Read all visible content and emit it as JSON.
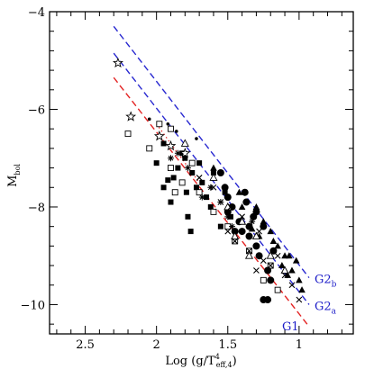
{
  "chart_data": {
    "type": "scatter",
    "title": "",
    "xlabel": "Log (g/T",
    "xlabel_sup": "4",
    "xlabel_sub": "eff,4",
    "xlabel_close": ")",
    "ylabel_main": "M",
    "ylabel_sub": "bol",
    "xlim": [
      2.75,
      0.62
    ],
    "ylim": [
      -4,
      -10.6
    ],
    "xticks": [
      {
        "v": 2.5,
        "label": "2.5"
      },
      {
        "v": 2.0,
        "label": "2"
      },
      {
        "v": 1.5,
        "label": "1.5"
      },
      {
        "v": 1.0,
        "label": "1"
      }
    ],
    "yticks": [
      {
        "v": -4,
        "label": "−4"
      },
      {
        "v": -6,
        "label": "−6"
      },
      {
        "v": -8,
        "label": "−8"
      },
      {
        "v": -10,
        "label": "−10"
      }
    ],
    "grid": false,
    "lines": [
      {
        "name": "G1",
        "name_sub": "",
        "color": "#e32222",
        "x": [
          2.3,
          0.93
        ],
        "y": [
          -5.35,
          -10.45
        ]
      },
      {
        "name": "G2",
        "name_sub": "a",
        "color": "#2828d0",
        "x": [
          2.3,
          0.93
        ],
        "y": [
          -4.85,
          -10.0
        ]
      },
      {
        "name": "G2",
        "name_sub": "b",
        "color": "#2828d0",
        "x": [
          2.3,
          0.93
        ],
        "y": [
          -4.3,
          -9.45
        ]
      }
    ],
    "fit_line": {
      "color": "#e32222",
      "x": [
        2.0,
        1.7
      ],
      "y": [
        -6.3,
        -7.5
      ]
    },
    "series": [
      {
        "marker": "filled-square",
        "points": [
          [
            1.95,
            -7.6
          ],
          [
            1.9,
            -7.9
          ],
          [
            1.88,
            -7.4
          ],
          [
            1.8,
            -7.0
          ],
          [
            1.78,
            -8.2
          ],
          [
            1.75,
            -7.3
          ],
          [
            1.72,
            -7.6
          ],
          [
            1.7,
            -7.1
          ],
          [
            1.68,
            -7.5
          ],
          [
            1.62,
            -8.0
          ],
          [
            1.6,
            -7.3
          ],
          [
            1.55,
            -8.4
          ],
          [
            1.52,
            -7.7
          ],
          [
            1.48,
            -8.2
          ],
          [
            1.85,
            -7.2
          ],
          [
            1.79,
            -7.7
          ],
          [
            1.65,
            -7.8
          ],
          [
            1.95,
            -6.7
          ],
          [
            1.82,
            -6.9
          ],
          [
            2.0,
            -7.1
          ],
          [
            1.92,
            -7.45
          ],
          [
            1.76,
            -8.5
          ]
        ]
      },
      {
        "marker": "open-square",
        "points": [
          [
            2.05,
            -6.8
          ],
          [
            1.98,
            -6.3
          ],
          [
            1.9,
            -7.2
          ],
          [
            1.82,
            -7.5
          ],
          [
            1.75,
            -7.1
          ],
          [
            1.7,
            -7.7
          ],
          [
            1.6,
            -8.1
          ],
          [
            1.5,
            -8.4
          ],
          [
            1.35,
            -8.9
          ],
          [
            1.25,
            -9.5
          ],
          [
            1.2,
            -9.2
          ],
          [
            1.15,
            -9.7
          ],
          [
            2.2,
            -6.5
          ],
          [
            1.87,
            -7.7
          ],
          [
            1.45,
            -8.7
          ],
          [
            1.9,
            -6.4
          ]
        ]
      },
      {
        "marker": "filled-circle",
        "points": [
          [
            1.55,
            -7.3
          ],
          [
            1.5,
            -7.8
          ],
          [
            1.47,
            -8.0
          ],
          [
            1.42,
            -8.3
          ],
          [
            1.4,
            -8.5
          ],
          [
            1.37,
            -7.9
          ],
          [
            1.35,
            -8.6
          ],
          [
            1.32,
            -8.2
          ],
          [
            1.3,
            -8.8
          ],
          [
            1.28,
            -9.0
          ],
          [
            1.25,
            -8.4
          ],
          [
            1.22,
            -9.3
          ],
          [
            1.2,
            -9.5
          ],
          [
            1.18,
            -8.9
          ],
          [
            1.25,
            -9.9
          ],
          [
            1.22,
            -9.9
          ],
          [
            1.45,
            -8.5
          ],
          [
            1.3,
            -8.1
          ],
          [
            1.38,
            -7.7
          ],
          [
            1.5,
            -8.1
          ],
          [
            1.52,
            -7.6
          ],
          [
            1.35,
            -8.4
          ]
        ]
      },
      {
        "marker": "filled-triangle",
        "points": [
          [
            1.3,
            -8.0
          ],
          [
            1.25,
            -8.3
          ],
          [
            1.2,
            -8.5
          ],
          [
            1.15,
            -8.8
          ],
          [
            1.1,
            -9.0
          ],
          [
            1.05,
            -9.3
          ],
          [
            1.0,
            -9.5
          ],
          [
            0.98,
            -9.7
          ],
          [
            1.12,
            -9.2
          ],
          [
            1.07,
            -9.0
          ],
          [
            1.02,
            -9.1
          ],
          [
            1.18,
            -8.7
          ],
          [
            1.4,
            -8.0
          ],
          [
            1.6,
            -7.2
          ],
          [
            1.42,
            -7.7
          ],
          [
            1.08,
            -9.4
          ],
          [
            1.33,
            -8.45
          ],
          [
            1.28,
            -8.6
          ]
        ]
      },
      {
        "marker": "open-triangle",
        "points": [
          [
            1.6,
            -7.4
          ],
          [
            1.5,
            -8.0
          ],
          [
            1.4,
            -8.3
          ],
          [
            1.3,
            -8.6
          ],
          [
            1.45,
            -8.6
          ],
          [
            1.2,
            -9.0
          ],
          [
            1.1,
            -9.3
          ],
          [
            1.35,
            -9.0
          ],
          [
            1.8,
            -6.7
          ]
        ]
      },
      {
        "marker": "cross",
        "points": [
          [
            1.5,
            -8.5
          ],
          [
            1.45,
            -8.7
          ],
          [
            1.4,
            -8.2
          ],
          [
            1.35,
            -8.9
          ],
          [
            1.3,
            -9.3
          ],
          [
            1.25,
            -9.1
          ],
          [
            1.2,
            -9.2
          ],
          [
            1.15,
            -9.0
          ],
          [
            1.1,
            -9.4
          ],
          [
            1.05,
            -9.6
          ],
          [
            1.0,
            -9.9
          ],
          [
            1.55,
            -7.9
          ],
          [
            1.6,
            -7.6
          ],
          [
            1.7,
            -7.4
          ],
          [
            1.48,
            -8.0
          ],
          [
            1.28,
            -8.5
          ]
        ]
      },
      {
        "marker": "asterisk",
        "points": [
          [
            1.9,
            -7.0
          ],
          [
            1.78,
            -7.2
          ],
          [
            1.62,
            -7.6
          ],
          [
            1.55,
            -7.9
          ],
          [
            1.5,
            -8.2
          ],
          [
            1.85,
            -6.9
          ],
          [
            1.68,
            -7.8
          ],
          [
            1.47,
            -8.4
          ],
          [
            1.33,
            -8.3
          ]
        ]
      },
      {
        "marker": "open-star",
        "points": [
          [
            2.27,
            -5.05
          ],
          [
            2.18,
            -6.15
          ],
          [
            1.98,
            -6.55
          ],
          [
            1.9,
            -6.75
          ],
          [
            1.8,
            -6.9
          ]
        ]
      },
      {
        "marker": "small-dot",
        "points": [
          [
            2.05,
            -6.2
          ],
          [
            1.92,
            -6.3
          ],
          [
            1.86,
            -6.45
          ],
          [
            1.72,
            -6.6
          ]
        ]
      }
    ]
  }
}
